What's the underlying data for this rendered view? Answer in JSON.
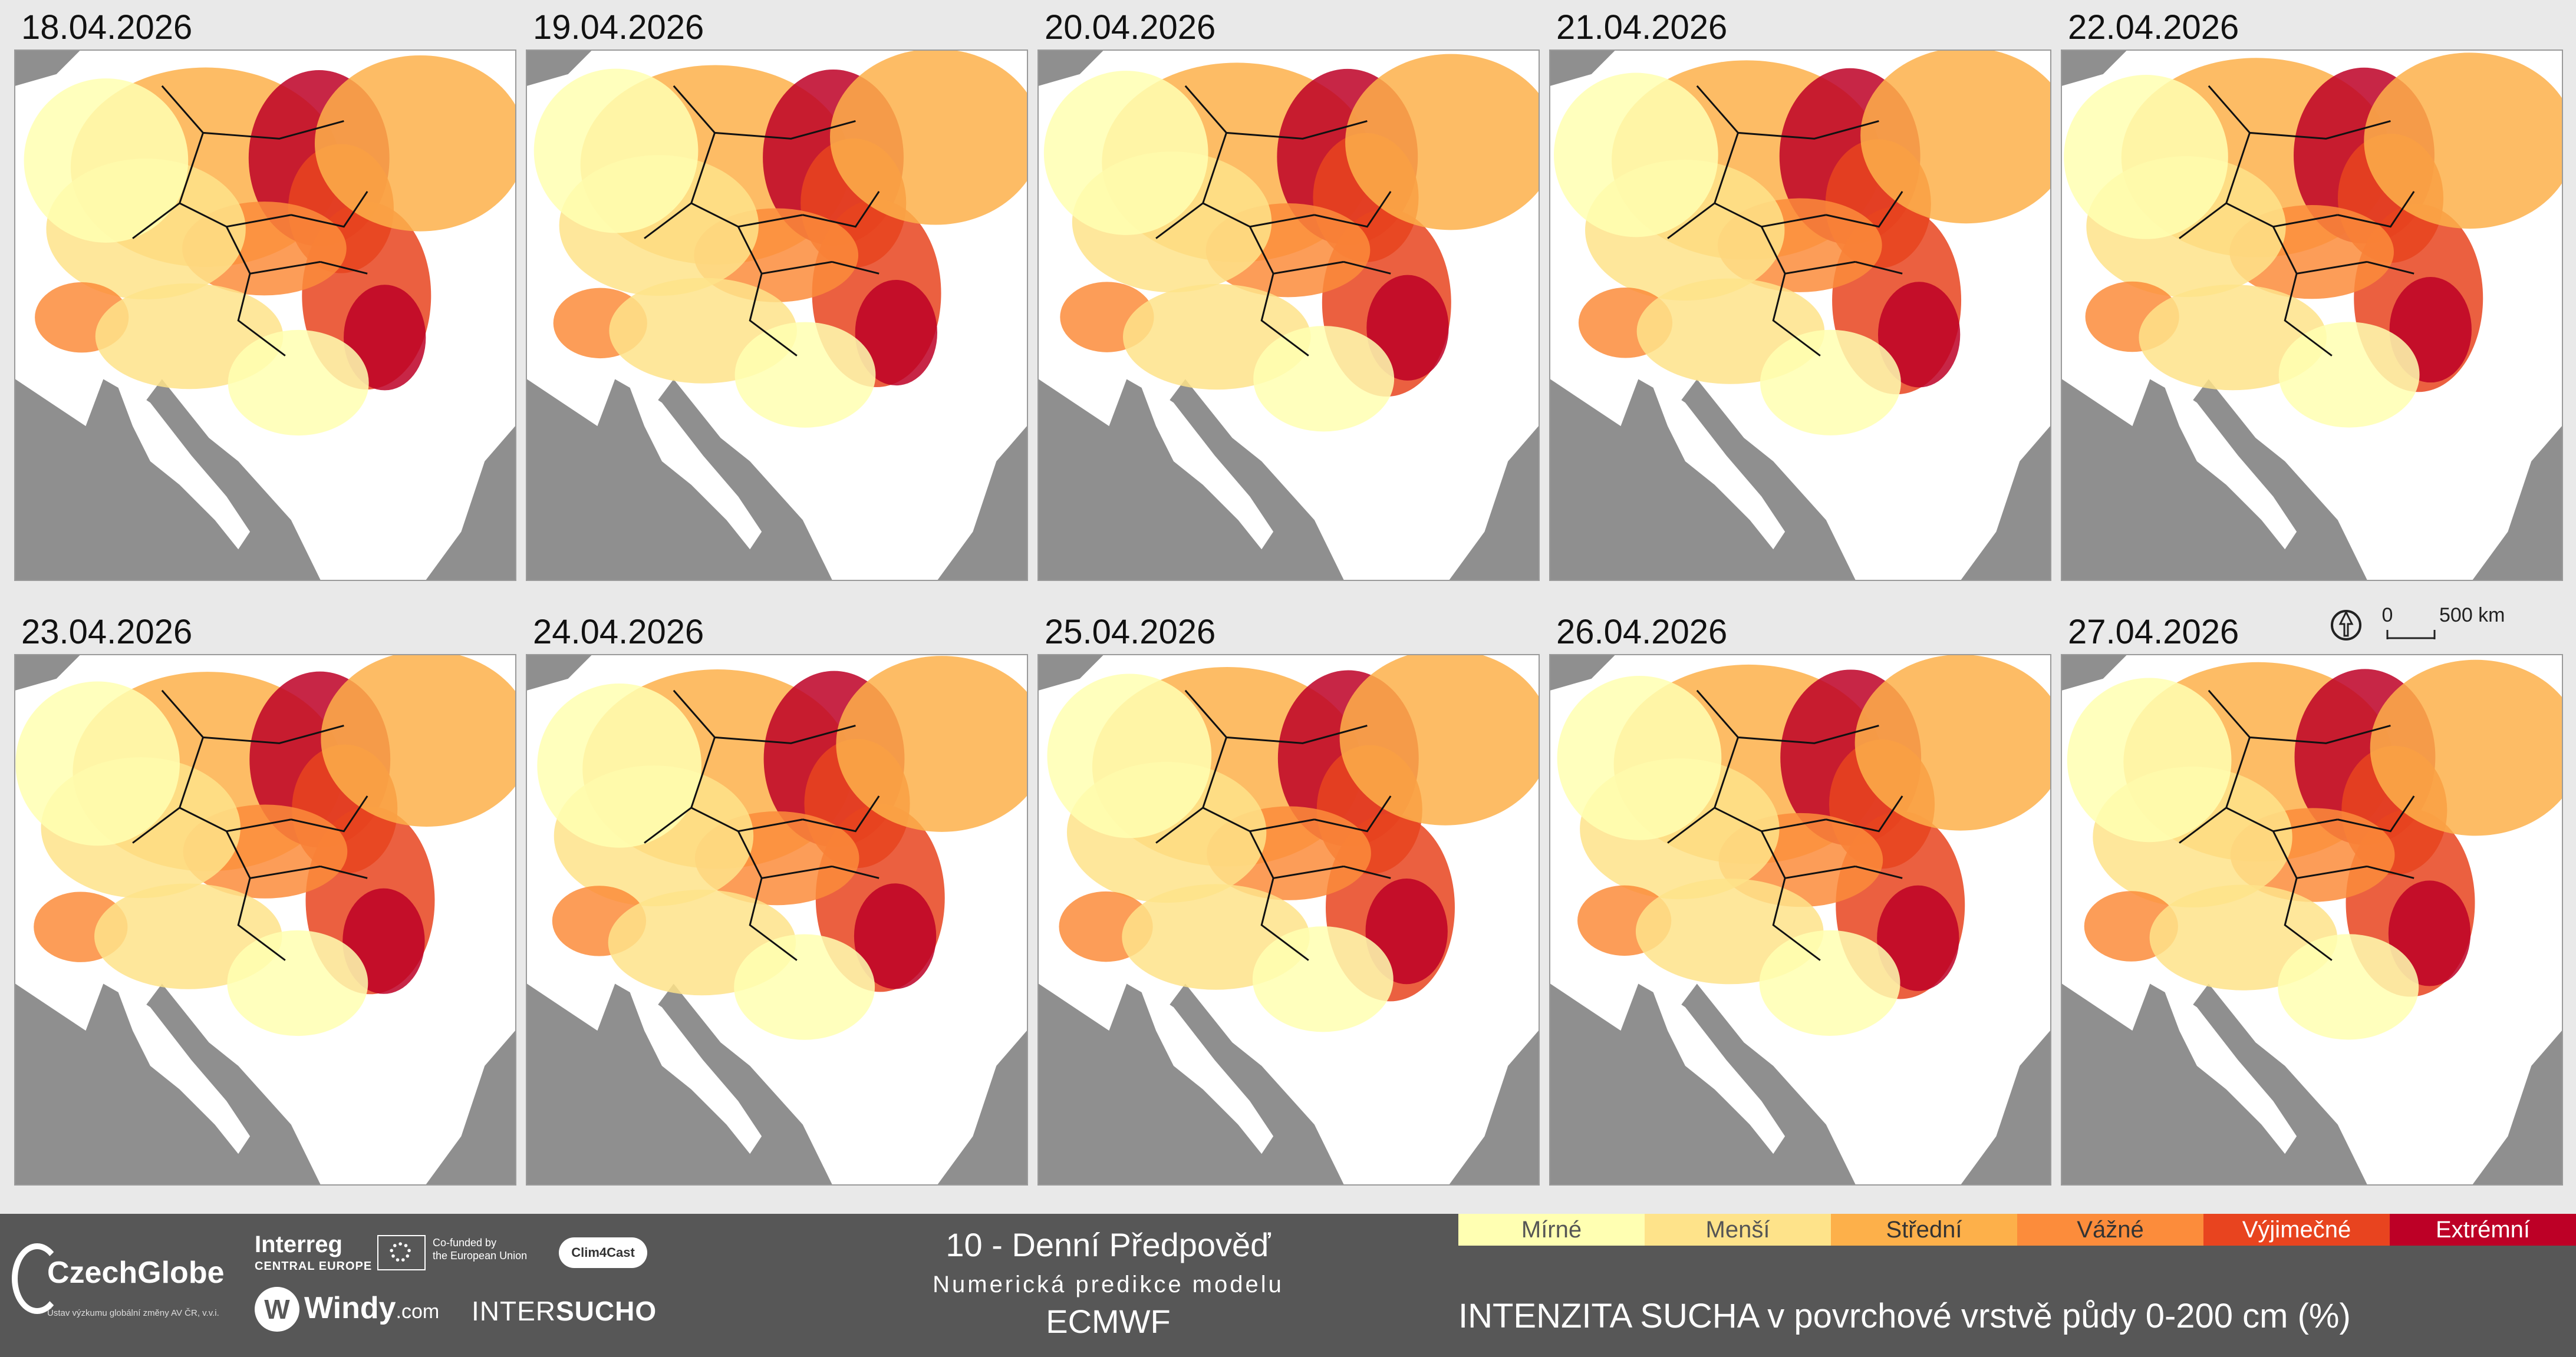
{
  "panels": [
    {
      "date": "18.04.2026"
    },
    {
      "date": "19.04.2026"
    },
    {
      "date": "20.04.2026"
    },
    {
      "date": "21.04.2026"
    },
    {
      "date": "22.04.2026"
    },
    {
      "date": "23.04.2026"
    },
    {
      "date": "24.04.2026"
    },
    {
      "date": "25.04.2026"
    },
    {
      "date": "26.04.2026"
    },
    {
      "date": "27.04.2026"
    }
  ],
  "scale": {
    "zero": "0",
    "distance": "500 km"
  },
  "footer": {
    "czechglobe": "CzechGlobe",
    "czechglobe_sub": "Ústav výzkumu globální změny AV ČR, v.v.i.",
    "interreg": "Interreg",
    "interreg_sub": "CENTRAL EUROPE",
    "eu_text_1": "Co-funded by",
    "eu_text_2": "the European Union",
    "clim4cast": "Clim4Cast",
    "windy": "Windy",
    "windy_com": ".com",
    "intersucho_a": "INTER",
    "intersucho_b": "SUCHO",
    "title_main": "10 - Denní Předpověď",
    "title_sub": "Numerická predikce modelu",
    "title_model": "ECMWF",
    "legend_title": "INTENZITA SUCHA v povrchové vrstvě půdy 0-200 cm (%)"
  },
  "legend": [
    {
      "label": "Mírné",
      "color": "#ffffb2",
      "text_color": "#555555"
    },
    {
      "label": "Menší",
      "color": "#fee38a",
      "text_color": "#555555"
    },
    {
      "label": "Střední",
      "color": "#fdb04a",
      "text_color": "#333333"
    },
    {
      "label": "Vážné",
      "color": "#fc8c3b",
      "text_color": "#333333"
    },
    {
      "label": "Výjimečné",
      "color": "#e8441f",
      "text_color": "#ffffff"
    },
    {
      "label": "Extrémní",
      "color": "#bd0026",
      "text_color": "#ffffff"
    }
  ]
}
